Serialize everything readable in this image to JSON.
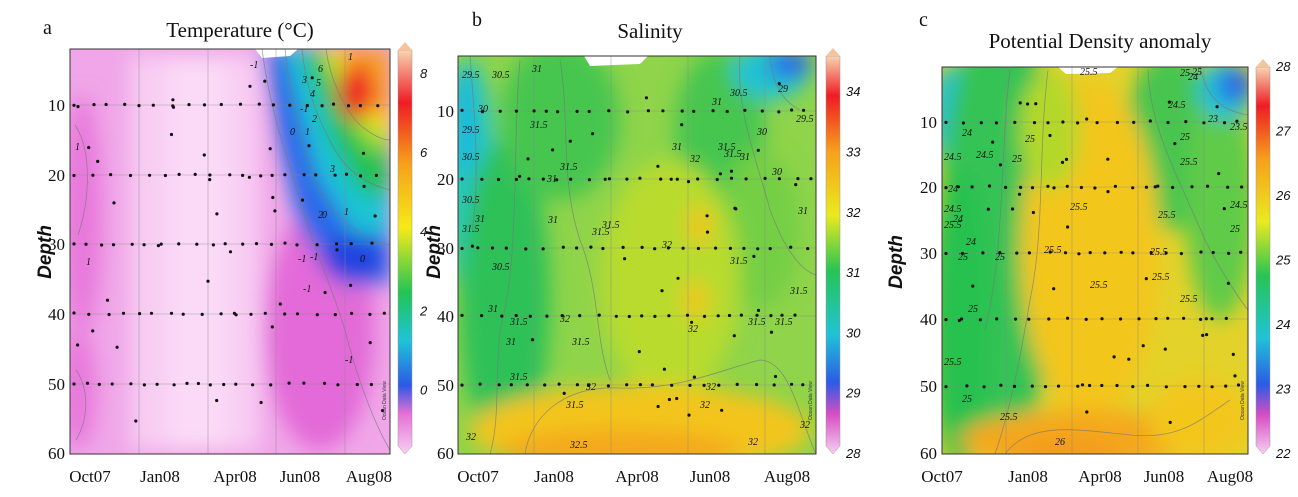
{
  "chart_data": [
    {
      "type": "heatmap",
      "panel_letter": "a",
      "title": "Temperature (°C)",
      "xlabel": "",
      "ylabel": "Depth",
      "x_ticks": [
        "Oct07",
        "Jan08",
        "Apr08",
        "Jun08",
        "Aug08"
      ],
      "y_ticks": [
        10,
        20,
        30,
        40,
        50,
        60
      ],
      "ylim": [
        60,
        3
      ],
      "colorbar": {
        "ticks": [
          0,
          2,
          4,
          6,
          8
        ],
        "range": [
          -1.6,
          8.6
        ]
      },
      "contour_labels": [
        "1",
        "1",
        "-1",
        "-1",
        "-1",
        "0",
        "1",
        "2",
        "3",
        "4",
        "5",
        "6",
        "1",
        "2",
        "3",
        "0",
        "-1",
        "0",
        "1",
        "-1",
        "-1"
      ],
      "watermark": "Ocean Data View",
      "colors": {
        "low": "#f8c6ee",
        "mid": "#21c455",
        "high": "#f20e1a"
      }
    },
    {
      "type": "heatmap",
      "panel_letter": "b",
      "title": "Salinity",
      "xlabel": "",
      "ylabel": "Depth",
      "x_ticks": [
        "Oct07",
        "Jan08",
        "Apr08",
        "Jun08",
        "Aug08"
      ],
      "y_ticks": [
        10,
        20,
        30,
        40,
        50,
        60
      ],
      "ylim": [
        60,
        3
      ],
      "colorbar": {
        "ticks": [
          28,
          29,
          30,
          31,
          32,
          33,
          34
        ],
        "range": [
          28,
          34.6
        ]
      },
      "contour_labels": [
        "29.5",
        "30.5",
        "31",
        "29.5",
        "30",
        "30.5",
        "31.5",
        "31",
        "31.5",
        "31",
        "30.5",
        "31",
        "31.5",
        "31.5",
        "30.5",
        "31",
        "31.5",
        "31",
        "32",
        "31.5",
        "31.5",
        "31.5",
        "32",
        "31.5",
        "32",
        "31.5",
        "32",
        "32",
        "31.5",
        "32",
        "32",
        "29",
        "30",
        "29.5",
        "30.5",
        "31",
        "31",
        "31.5",
        "31.5",
        "30",
        "31",
        "32",
        "31.5",
        "31.5",
        "31",
        "32",
        "32",
        "32.5"
      ],
      "watermark": "Ocean Data View",
      "colors": {
        "low": "#2b7fe0",
        "mid": "#3fc95a",
        "high": "#f4a41a"
      }
    },
    {
      "type": "heatmap",
      "panel_letter": "c",
      "title": "Potential Density anomaly",
      "xlabel": "",
      "ylabel": "Depth",
      "x_ticks": [
        "Oct07",
        "Jan08",
        "Apr08",
        "Jun08",
        "Aug08"
      ],
      "y_ticks": [
        10,
        20,
        30,
        40,
        50,
        60
      ],
      "ylim": [
        60,
        3
      ],
      "colorbar": {
        "ticks": [
          22,
          23,
          24,
          25,
          26,
          27,
          28
        ],
        "range": [
          22,
          28
        ]
      },
      "contour_labels": [
        "24",
        "24.5",
        "24",
        "24.5",
        "24.5",
        "25",
        "25.5",
        "24",
        "25",
        "25",
        "24",
        "25.5",
        "25",
        "25",
        "25.5",
        "25.5",
        "25.5",
        "25",
        "25.5",
        "25.5",
        "25.5",
        "26",
        "24.5",
        "24",
        "23",
        "23.5",
        "25",
        "25.5",
        "25",
        "24.5",
        "25",
        "25.5",
        "25",
        "25.5",
        "25.5"
      ],
      "watermark": "Ocean Data View",
      "colors": {
        "low": "#f3c4e6",
        "mid": "#33c95c",
        "high": "#f2a31c"
      }
    }
  ]
}
